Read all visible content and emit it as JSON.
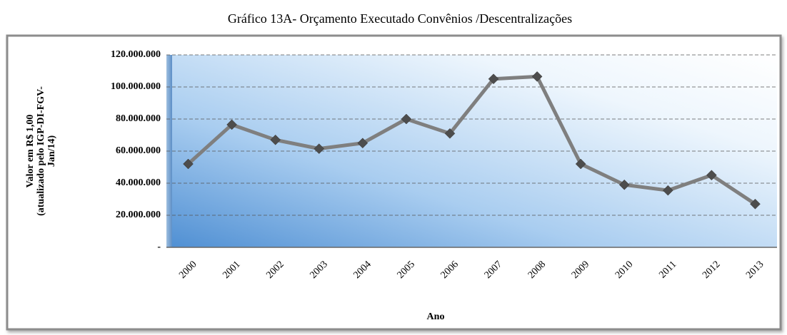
{
  "chart_data": {
    "type": "line",
    "title": "Gráfico 13A- Orçamento Executado Convênios /Descentralizações",
    "xlabel": "Ano",
    "ylabel": [
      "Valor em R$ 1,00",
      "(atualizado pelo IGP-DI-FGV-",
      "Jan/14)"
    ],
    "categories": [
      "2000",
      "2001",
      "2002",
      "2003",
      "2004",
      "2005",
      "2006",
      "2007",
      "2008",
      "2009",
      "2010",
      "2011",
      "2012",
      "2013"
    ],
    "values": [
      52000000,
      76500000,
      67000000,
      61500000,
      65000000,
      80000000,
      71000000,
      105000000,
      106500000,
      52000000,
      39000000,
      35500000,
      45000000,
      27000000
    ],
    "color": "#7f7f7f",
    "marker_color": "#4d4d4d",
    "ylim": [
      0,
      120000000
    ],
    "yticks": [
      {
        "value": 0,
        "label": "-"
      },
      {
        "value": 20000000,
        "label": "20.000.000"
      },
      {
        "value": 40000000,
        "label": "40.000.000"
      },
      {
        "value": 60000000,
        "label": "60.000.000"
      },
      {
        "value": 80000000,
        "label": "80.000.000"
      },
      {
        "value": 100000000,
        "label": "100.000.000"
      },
      {
        "value": 120000000,
        "label": "120.000.000"
      }
    ],
    "grid": true
  }
}
